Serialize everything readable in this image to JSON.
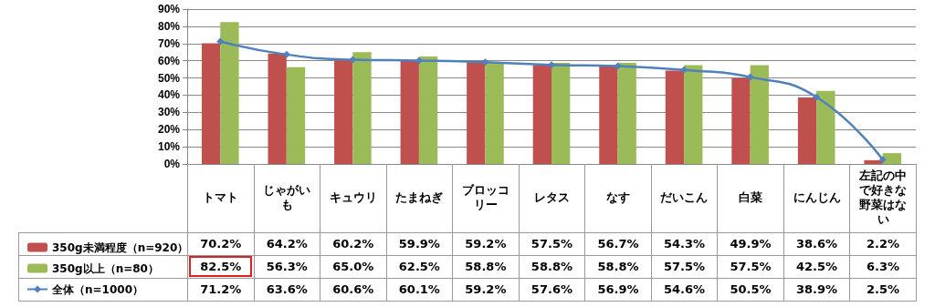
{
  "chart_data": {
    "type": "bar",
    "categories": [
      "トマト",
      "じゃがいも",
      "キュウリ",
      "たまねぎ",
      "ブロッコリー",
      "レタス",
      "なす",
      "だいこん",
      "白菜",
      "にんじん",
      "左記の中で好きな野菜はない"
    ],
    "series": [
      {
        "name": "350g未満程度（n=920）",
        "color": "#c0504d",
        "values": [
          70.2,
          64.2,
          60.2,
          59.9,
          59.2,
          57.5,
          56.7,
          54.3,
          49.9,
          38.6,
          2.2
        ],
        "value_labels": [
          "70.2%",
          "64.2%",
          "60.2%",
          "59.9%",
          "59.2%",
          "57.5%",
          "56.7%",
          "54.3%",
          "49.9%",
          "38.6%",
          "2.2%"
        ]
      },
      {
        "name": "350g以上（n=80）",
        "color": "#9bbb59",
        "values": [
          82.5,
          56.3,
          65.0,
          62.5,
          58.8,
          58.8,
          58.8,
          57.5,
          57.5,
          42.5,
          6.3
        ],
        "value_labels": [
          "82.5%",
          "56.3%",
          "65.0%",
          "62.5%",
          "58.8%",
          "58.8%",
          "58.8%",
          "57.5%",
          "57.5%",
          "42.5%",
          "6.3%"
        ]
      },
      {
        "name": "全体（n=1000）",
        "type": "line",
        "color": "#4f81bd",
        "marker": "diamond",
        "values": [
          71.2,
          63.6,
          60.6,
          60.1,
          59.2,
          57.6,
          56.9,
          54.6,
          50.5,
          38.9,
          2.5
        ],
        "value_labels": [
          "71.2%",
          "63.6%",
          "60.6%",
          "60.1%",
          "59.2%",
          "57.6%",
          "56.9%",
          "54.6%",
          "50.5%",
          "38.9%",
          "2.5%"
        ]
      }
    ],
    "ylim": [
      0,
      90
    ],
    "yticks": [
      {
        "value": 0,
        "label": "0%"
      },
      {
        "value": 10,
        "label": "10%"
      },
      {
        "value": 20,
        "label": "20%"
      },
      {
        "value": 30,
        "label": "30%"
      },
      {
        "value": 40,
        "label": "40%"
      },
      {
        "value": 50,
        "label": "50%"
      },
      {
        "value": 60,
        "label": "60%"
      },
      {
        "value": 70,
        "label": "70%"
      },
      {
        "value": 80,
        "label": "80%"
      },
      {
        "value": 90,
        "label": "90%"
      }
    ],
    "grid": "y",
    "legend": "bottom left"
  }
}
